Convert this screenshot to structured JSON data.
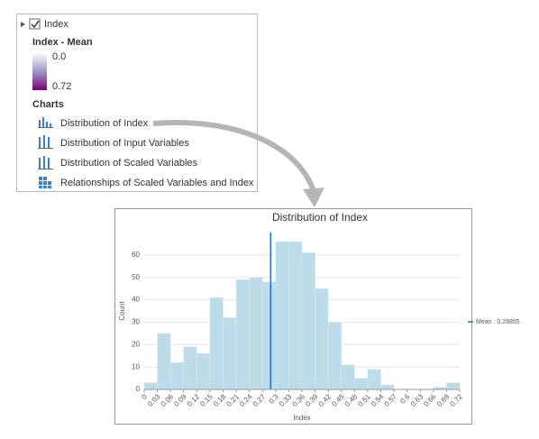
{
  "panel": {
    "layer": "Index",
    "legend_title": "Index - Mean",
    "ramp_min": "0.0",
    "ramp_max": "0.72",
    "charts_heading": "Charts",
    "charts": [
      "Distribution of Index",
      "Distribution of Input Variables",
      "Distribution of Scaled Variables",
      "Relationships of Scaled Variables and Index"
    ]
  },
  "chart_data": {
    "type": "histogram",
    "title": "Distribution of Index",
    "x_label": "Index",
    "y_label": "Count",
    "bins": [
      0,
      0.03,
      0.06,
      0.09,
      0.12,
      0.15,
      0.18,
      0.21,
      0.24,
      0.27,
      0.3,
      0.33,
      0.36,
      0.39,
      0.42,
      0.45,
      0.48,
      0.51,
      0.54,
      0.57,
      0.6,
      0.63,
      0.66,
      0.69,
      0.72
    ],
    "counts": [
      3,
      25,
      12,
      19,
      16,
      41,
      32,
      49,
      50,
      48,
      66,
      66,
      61,
      45,
      30,
      11,
      5,
      9,
      2,
      0,
      0,
      0,
      1,
      3
    ],
    "color": "#bcdcea",
    "mean": 0.28855,
    "mean_label": "Mean : 0.28855",
    "mean_color": "#1f6fe0",
    "xlim": [
      0,
      0.72
    ],
    "xticks": [
      0,
      0.03,
      0.06,
      0.09,
      0.12,
      0.15,
      0.18,
      0.21,
      0.24,
      0.27,
      0.3,
      0.33,
      0.36,
      0.39,
      0.42,
      0.45,
      0.48,
      0.51,
      0.54,
      0.57,
      0.6,
      0.63,
      0.66,
      0.69,
      0.72
    ],
    "ylim": [
      0,
      70
    ],
    "yticks": [
      0,
      10,
      20,
      30,
      40,
      50,
      60
    ],
    "grid": true
  }
}
